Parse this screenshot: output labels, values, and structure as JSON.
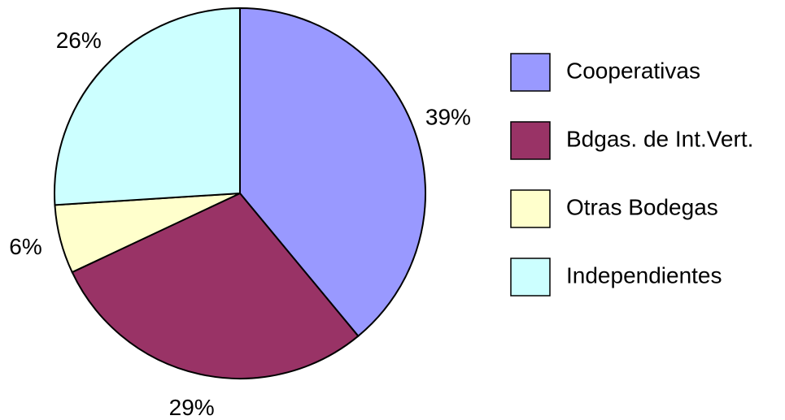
{
  "chart_data": {
    "type": "pie",
    "categories": [
      "Cooperativas",
      "Bdgas. de Int.Vert.",
      "Otras Bodegas",
      "Independientes"
    ],
    "values": [
      39,
      29,
      6,
      26
    ],
    "value_labels": [
      "39%",
      "29%",
      "6%",
      "26%"
    ],
    "colors": [
      "#9999ff",
      "#993366",
      "#ffffcc",
      "#ccffff"
    ],
    "legend": "right"
  }
}
